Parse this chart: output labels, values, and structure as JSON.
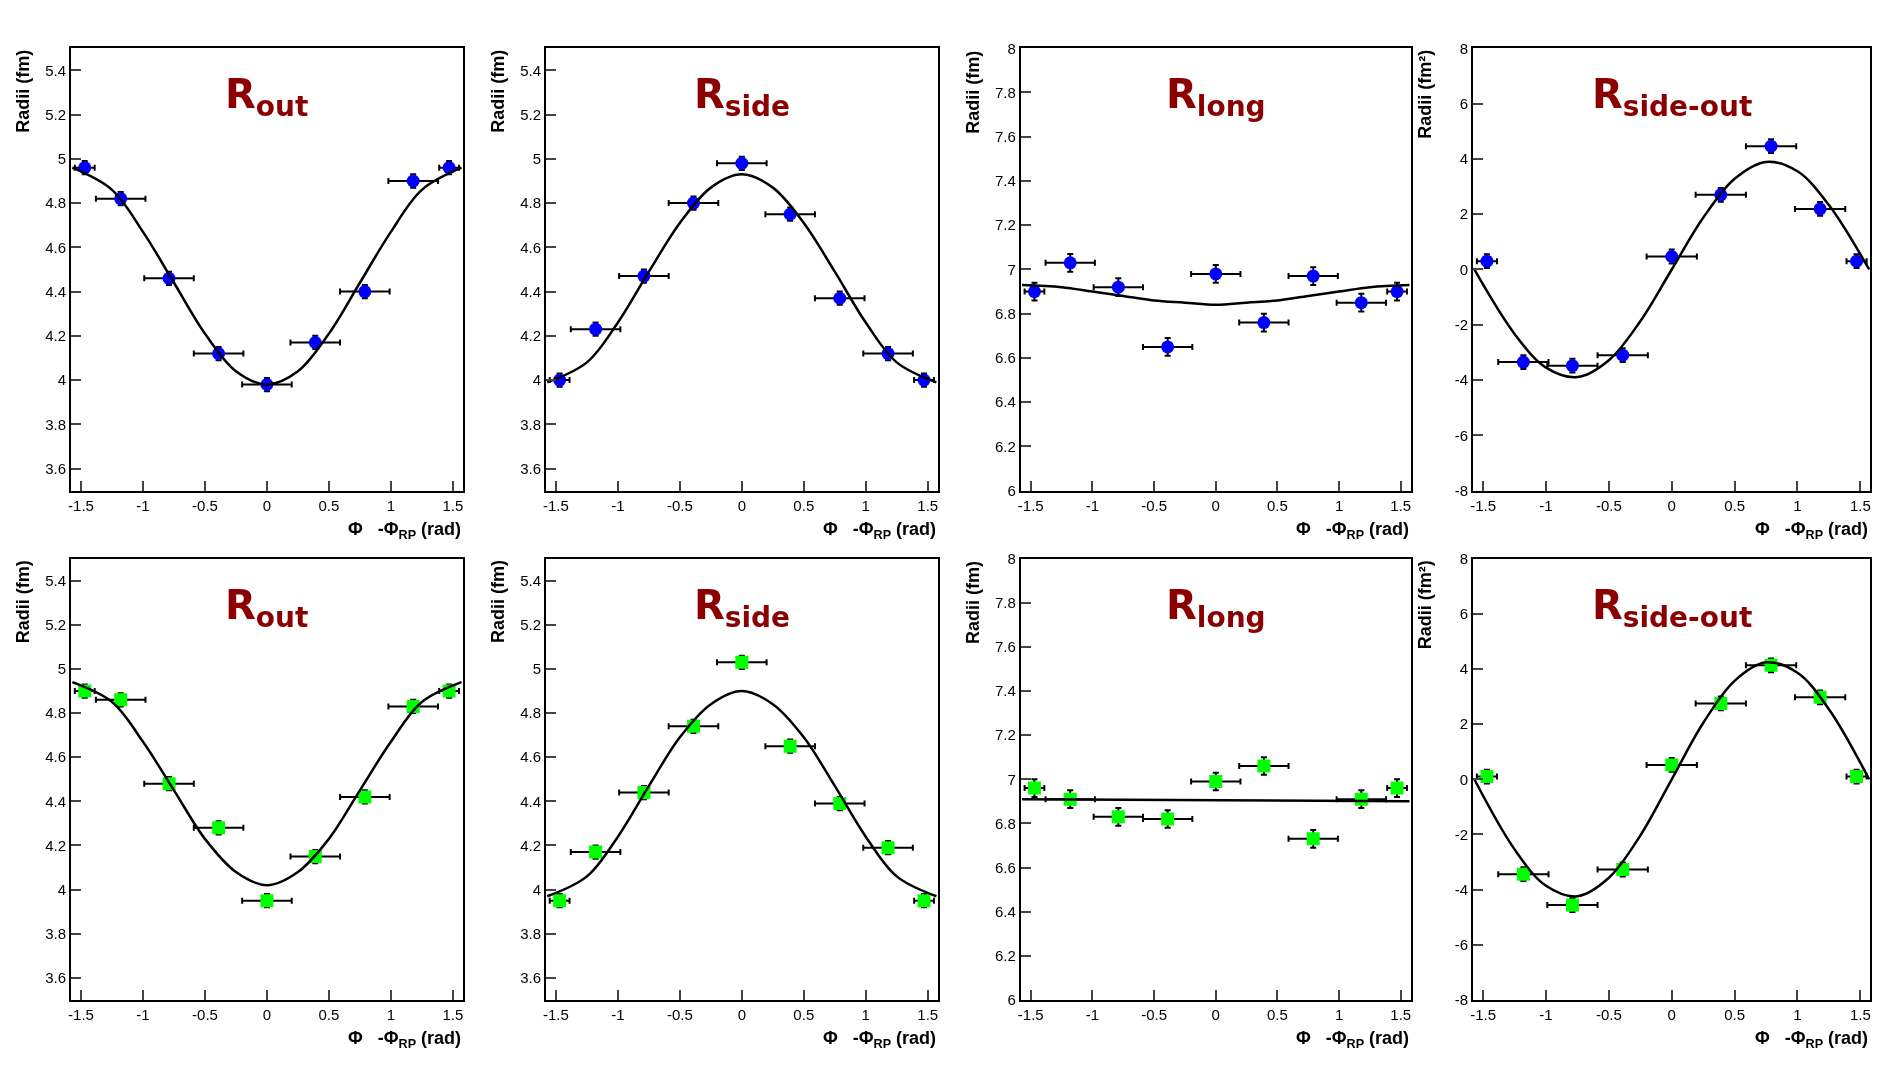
{
  "chart_data": [
    {
      "type": "scatter",
      "title": "R$_{out}$",
      "xlabel": "Φ   -Φ$_{RP}$ (rad)",
      "ylabel": "Radii (fm)",
      "marker": "circle",
      "xlim": [
        -1.58,
        1.58
      ],
      "ylim": [
        3.5,
        5.5
      ],
      "xticks": [
        -1.5,
        -1,
        -0.5,
        0,
        0.5,
        1,
        1.5
      ],
      "yticks": [
        3.6,
        3.8,
        4,
        4.2,
        4.4,
        4.6,
        4.8,
        5,
        5.2,
        5.4
      ],
      "series": [
        {
          "color": "#0000ff",
          "x": [
            -1.47,
            -1.18,
            -0.79,
            -0.39,
            0,
            0.39,
            0.79,
            1.18,
            1.47
          ],
          "values": [
            4.96,
            4.82,
            4.46,
            4.12,
            3.98,
            4.17,
            4.4,
            4.9,
            4.96
          ],
          "errors": [
            0.03,
            0.03,
            0.03,
            0.03,
            0.03,
            0.03,
            0.03,
            0.03,
            0.03
          ],
          "xerrors": [
            0.08,
            0.2,
            0.2,
            0.2,
            0.2,
            0.2,
            0.2,
            0.2,
            0.08
          ]
        },
        {
          "type": "line",
          "marker": "none",
          "color": "#000000",
          "x": [
            -1.57,
            -1.25,
            -1,
            -0.75,
            -0.5,
            -0.25,
            0,
            0.25,
            0.5,
            0.75,
            1,
            1.25,
            1.57
          ],
          "values": [
            4.96,
            4.86,
            4.67,
            4.44,
            4.21,
            4.04,
            3.98,
            4.04,
            4.21,
            4.44,
            4.67,
            4.86,
            4.96
          ]
        }
      ]
    },
    {
      "type": "scatter",
      "title": "R$_{side}$",
      "xlabel": "Φ   -Φ$_{RP}$ (rad)",
      "ylabel": "Radii (fm)",
      "marker": "circle",
      "xlim": [
        -1.58,
        1.58
      ],
      "ylim": [
        3.5,
        5.5
      ],
      "xticks": [
        -1.5,
        -1,
        -0.5,
        0,
        0.5,
        1,
        1.5
      ],
      "yticks": [
        3.6,
        3.8,
        4,
        4.2,
        4.4,
        4.6,
        4.8,
        5,
        5.2,
        5.4
      ],
      "series": [
        {
          "color": "#0000ff",
          "x": [
            -1.47,
            -1.18,
            -0.79,
            -0.39,
            0,
            0.39,
            0.79,
            1.18,
            1.47
          ],
          "values": [
            4.0,
            4.23,
            4.47,
            4.8,
            4.98,
            4.75,
            4.37,
            4.12,
            4.0
          ],
          "errors": [
            0.03,
            0.03,
            0.03,
            0.03,
            0.03,
            0.03,
            0.03,
            0.03,
            0.03
          ],
          "xerrors": [
            0.08,
            0.2,
            0.2,
            0.2,
            0.2,
            0.2,
            0.2,
            0.2,
            0.08
          ]
        },
        {
          "type": "line",
          "marker": "none",
          "color": "#000000",
          "x": [
            -1.57,
            -1.25,
            -1,
            -0.75,
            -0.5,
            -0.25,
            0,
            0.25,
            0.5,
            0.75,
            1,
            1.25,
            1.57
          ],
          "values": [
            3.99,
            4.08,
            4.26,
            4.49,
            4.71,
            4.87,
            4.93,
            4.87,
            4.71,
            4.49,
            4.26,
            4.08,
            3.99
          ]
        }
      ]
    },
    {
      "type": "scatter",
      "title": "R$_{long}$",
      "xlabel": "Φ   -Φ$_{RP}$ (rad)",
      "ylabel": "Radii (fm)",
      "marker": "circle",
      "xlim": [
        -1.58,
        1.58
      ],
      "ylim": [
        6,
        8
      ],
      "xticks": [
        -1.5,
        -1,
        -0.5,
        0,
        0.5,
        1,
        1.5
      ],
      "yticks": [
        6,
        6.2,
        6.4,
        6.6,
        6.8,
        7,
        7.2,
        7.4,
        7.6,
        7.8,
        8
      ],
      "series": [
        {
          "color": "#0000ff",
          "x": [
            -1.47,
            -1.18,
            -0.79,
            -0.39,
            0,
            0.39,
            0.79,
            1.18,
            1.47
          ],
          "values": [
            6.9,
            7.03,
            6.92,
            6.65,
            6.98,
            6.76,
            6.97,
            6.85,
            6.9
          ],
          "errors": [
            0.04,
            0.04,
            0.04,
            0.04,
            0.04,
            0.04,
            0.04,
            0.04,
            0.04
          ],
          "xerrors": [
            0.08,
            0.2,
            0.2,
            0.2,
            0.2,
            0.2,
            0.2,
            0.2,
            0.08
          ]
        },
        {
          "type": "line",
          "marker": "none",
          "color": "#000000",
          "x": [
            -1.57,
            -1.25,
            -1,
            -0.75,
            -0.5,
            -0.25,
            0,
            0.25,
            0.5,
            0.75,
            1,
            1.25,
            1.57
          ],
          "values": [
            6.93,
            6.92,
            6.9,
            6.88,
            6.86,
            6.85,
            6.84,
            6.85,
            6.86,
            6.88,
            6.9,
            6.92,
            6.93
          ]
        }
      ]
    },
    {
      "type": "scatter",
      "title": "R$_{side-out}$",
      "xlabel": "Φ   -Φ$_{RP}$ (rad)",
      "ylabel": "Radii (fm²)",
      "marker": "circle",
      "xlim": [
        -1.58,
        1.58
      ],
      "ylim": [
        -8,
        8
      ],
      "xticks": [
        -1.5,
        -1,
        -0.5,
        0,
        0.5,
        1,
        1.5
      ],
      "yticks": [
        -8,
        -6,
        -4,
        -2,
        0,
        2,
        4,
        6,
        8
      ],
      "series": [
        {
          "color": "#0000ff",
          "x": [
            -1.47,
            -1.18,
            -0.79,
            -0.39,
            0,
            0.39,
            0.79,
            1.18,
            1.47
          ],
          "values": [
            0.3,
            -3.35,
            -3.48,
            -3.1,
            0.47,
            2.7,
            4.46,
            2.19,
            0.3
          ],
          "errors": [
            0.25,
            0.25,
            0.25,
            0.25,
            0.25,
            0.25,
            0.25,
            0.25,
            0.25
          ],
          "xerrors": [
            0.08,
            0.2,
            0.2,
            0.2,
            0.2,
            0.2,
            0.2,
            0.2,
            0.08
          ]
        },
        {
          "type": "line",
          "marker": "none",
          "color": "#000000",
          "x": [
            -1.57,
            -1.25,
            -1,
            -0.75,
            -0.5,
            -0.25,
            0,
            0.25,
            0.5,
            0.75,
            1,
            1.25,
            1.57
          ],
          "values": [
            0,
            -2.33,
            -3.55,
            -3.89,
            -3.28,
            -1.87,
            0,
            1.87,
            3.28,
            3.89,
            3.55,
            2.33,
            0
          ]
        }
      ]
    },
    {
      "type": "scatter",
      "title": "R$_{out}$",
      "xlabel": "Φ   -Φ$_{RP}$ (rad)",
      "ylabel": "Radii (fm)",
      "marker": "square",
      "xlim": [
        -1.58,
        1.58
      ],
      "ylim": [
        3.5,
        5.5
      ],
      "xticks": [
        -1.5,
        -1,
        -0.5,
        0,
        0.5,
        1,
        1.5
      ],
      "yticks": [
        3.6,
        3.8,
        4,
        4.2,
        4.4,
        4.6,
        4.8,
        5,
        5.2,
        5.4
      ],
      "series": [
        {
          "color": "#00ff00",
          "x": [
            -1.47,
            -1.18,
            -0.79,
            -0.39,
            0,
            0.39,
            0.79,
            1.18,
            1.47
          ],
          "values": [
            4.9,
            4.86,
            4.48,
            4.28,
            3.95,
            4.15,
            4.42,
            4.83,
            4.9
          ],
          "errors": [
            0.03,
            0.03,
            0.03,
            0.03,
            0.03,
            0.03,
            0.03,
            0.03,
            0.03
          ],
          "xerrors": [
            0.08,
            0.2,
            0.2,
            0.2,
            0.2,
            0.2,
            0.2,
            0.2,
            0.08
          ]
        },
        {
          "type": "line",
          "marker": "none",
          "color": "#000000",
          "x": [
            -1.57,
            -1.25,
            -1,
            -0.75,
            -0.5,
            -0.25,
            0,
            0.25,
            0.5,
            0.75,
            1,
            1.25,
            1.57
          ],
          "values": [
            4.94,
            4.85,
            4.67,
            4.45,
            4.23,
            4.08,
            4.02,
            4.08,
            4.23,
            4.45,
            4.67,
            4.85,
            4.94
          ]
        }
      ]
    },
    {
      "type": "scatter",
      "title": "R$_{side}$",
      "xlabel": "Φ   -Φ$_{RP}$ (rad)",
      "ylabel": "Radii (fm)",
      "marker": "square",
      "xlim": [
        -1.58,
        1.58
      ],
      "ylim": [
        3.5,
        5.5
      ],
      "xticks": [
        -1.5,
        -1,
        -0.5,
        0,
        0.5,
        1,
        1.5
      ],
      "yticks": [
        3.6,
        3.8,
        4,
        4.2,
        4.4,
        4.6,
        4.8,
        5,
        5.2,
        5.4
      ],
      "series": [
        {
          "color": "#00ff00",
          "x": [
            -1.47,
            -1.18,
            -0.79,
            -0.39,
            0,
            0.39,
            0.79,
            1.18,
            1.47
          ],
          "values": [
            3.95,
            4.17,
            4.44,
            4.74,
            5.03,
            4.65,
            4.39,
            4.19,
            3.95
          ],
          "errors": [
            0.03,
            0.03,
            0.03,
            0.03,
            0.03,
            0.03,
            0.03,
            0.03,
            0.03
          ],
          "xerrors": [
            0.08,
            0.2,
            0.2,
            0.2,
            0.2,
            0.2,
            0.2,
            0.2,
            0.08
          ]
        },
        {
          "type": "line",
          "marker": "none",
          "color": "#000000",
          "x": [
            -1.57,
            -1.25,
            -1,
            -0.75,
            -0.5,
            -0.25,
            0,
            0.25,
            0.5,
            0.75,
            1,
            1.25,
            1.57
          ],
          "values": [
            3.97,
            4.06,
            4.24,
            4.47,
            4.69,
            4.84,
            4.9,
            4.84,
            4.69,
            4.47,
            4.24,
            4.06,
            3.97
          ]
        }
      ]
    },
    {
      "type": "scatter",
      "title": "R$_{long}$",
      "xlabel": "Φ   -Φ$_{RP}$ (rad)",
      "ylabel": "Radii (fm)",
      "marker": "square",
      "xlim": [
        -1.58,
        1.58
      ],
      "ylim": [
        6,
        8
      ],
      "xticks": [
        -1.5,
        -1,
        -0.5,
        0,
        0.5,
        1,
        1.5
      ],
      "yticks": [
        6,
        6.2,
        6.4,
        6.6,
        6.8,
        7,
        7.2,
        7.4,
        7.6,
        7.8,
        8
      ],
      "series": [
        {
          "color": "#00ff00",
          "x": [
            -1.47,
            -1.18,
            -0.79,
            -0.39,
            0,
            0.39,
            0.79,
            1.18,
            1.47
          ],
          "values": [
            6.96,
            6.91,
            6.83,
            6.82,
            6.99,
            7.06,
            6.73,
            6.91,
            6.96
          ],
          "errors": [
            0.04,
            0.04,
            0.04,
            0.04,
            0.04,
            0.04,
            0.04,
            0.04,
            0.04
          ],
          "xerrors": [
            0.08,
            0.2,
            0.2,
            0.2,
            0.2,
            0.2,
            0.2,
            0.2,
            0.08
          ]
        },
        {
          "type": "line",
          "marker": "none",
          "color": "#000000",
          "x": [
            -1.57,
            1.57
          ],
          "values": [
            6.91,
            6.9
          ]
        }
      ]
    },
    {
      "type": "scatter",
      "title": "R$_{side-out}$",
      "xlabel": "Φ   -Φ$_{RP}$ (rad)",
      "ylabel": "Radii (fm²)",
      "marker": "square",
      "xlim": [
        -1.58,
        1.58
      ],
      "ylim": [
        -8,
        8
      ],
      "xticks": [
        -1.5,
        -1,
        -0.5,
        0,
        0.5,
        1,
        1.5
      ],
      "yticks": [
        -8,
        -6,
        -4,
        -2,
        0,
        2,
        4,
        6,
        8
      ],
      "series": [
        {
          "color": "#00ff00",
          "x": [
            -1.47,
            -1.18,
            -0.79,
            -0.39,
            0,
            0.39,
            0.79,
            1.18,
            1.47
          ],
          "values": [
            0.1,
            -3.44,
            -4.56,
            -3.27,
            0.52,
            2.75,
            4.13,
            2.97,
            0.1
          ],
          "errors": [
            0.25,
            0.25,
            0.25,
            0.25,
            0.25,
            0.25,
            0.25,
            0.25,
            0.25
          ],
          "xerrors": [
            0.08,
            0.2,
            0.2,
            0.2,
            0.2,
            0.2,
            0.2,
            0.2,
            0.08
          ]
        },
        {
          "type": "line",
          "marker": "none",
          "color": "#000000",
          "x": [
            -1.57,
            -1.25,
            -1,
            -0.75,
            -0.5,
            -0.25,
            0,
            0.25,
            0.5,
            0.75,
            1,
            1.25,
            1.57
          ],
          "values": [
            0,
            -2.54,
            -3.86,
            -4.24,
            -3.57,
            -2.04,
            0,
            2.04,
            3.57,
            4.24,
            3.86,
            2.54,
            0
          ]
        }
      ]
    }
  ]
}
